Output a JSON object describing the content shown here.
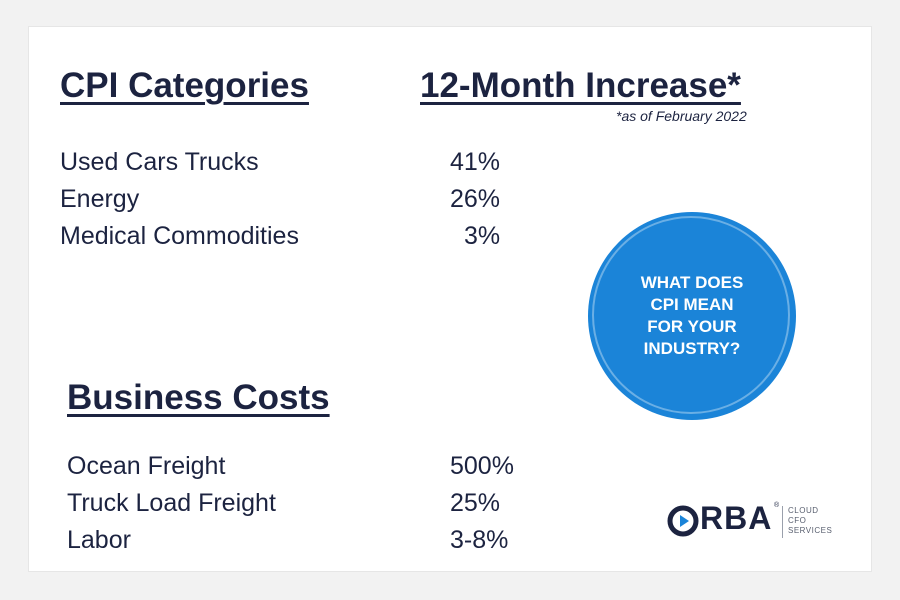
{
  "headings": {
    "cpi_categories": "CPI Categories",
    "increase": "12-Month Increase*",
    "footnote": "*as of February 2022",
    "business_costs": "Business Costs"
  },
  "cpi_rows": [
    {
      "label": "Used Cars Trucks",
      "value": "41%"
    },
    {
      "label": "Energy",
      "value": "26%"
    },
    {
      "label": "Medical Commodities",
      "value": "3%"
    }
  ],
  "business_rows": [
    {
      "label": "Ocean Freight",
      "value": "500%"
    },
    {
      "label": "Truck Load Freight",
      "value": "25%"
    },
    {
      "label": "Labor",
      "value": "3-8%"
    }
  ],
  "badge": {
    "text": "WHAT DOES\nCPI MEAN\nFOR YOUR\nINDUSTRY?",
    "color": "#1b84d8"
  },
  "logo": {
    "wordmark": "RBA",
    "registered": "®",
    "tagline": "CLOUD\nCFO\nSERVICES",
    "mark_color": "#1b84d8",
    "icon": "orba-play-circle-icon"
  },
  "colors": {
    "text": "#1c2340",
    "accent": "#1b84d8"
  }
}
